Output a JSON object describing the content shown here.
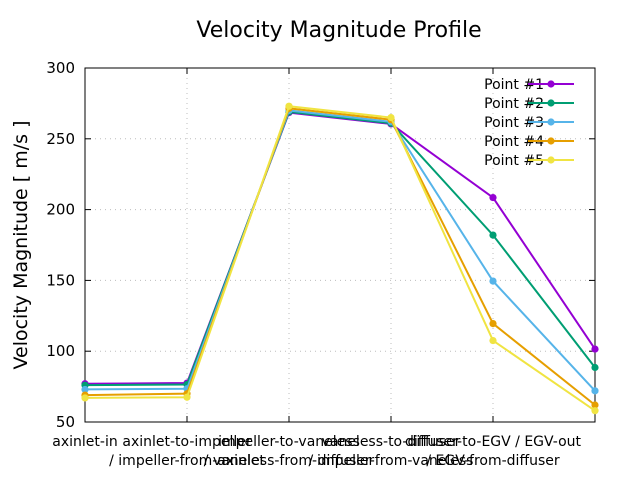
{
  "chart_data": {
    "type": "line",
    "title": "Velocity Magnitude Profile",
    "xlabel": "",
    "ylabel": "Velocity Magnitude [ m/s ]",
    "ylim": [
      50,
      300
    ],
    "yticks": [
      50,
      100,
      150,
      200,
      250,
      300
    ],
    "grid": true,
    "legend_position": "top-right",
    "categories": [
      [
        "axinlet-in",
        ""
      ],
      [
        "axinlet-to-impeller",
        "/ impeller-from-axinlet"
      ],
      [
        "impeller-to-vaneless",
        "/ vaneless-from-impeller"
      ],
      [
        "vaneless-to-diffuser",
        "/ diffuser-from-vaneless"
      ],
      [
        "diffuser-to-EGV / EGV-out",
        "/ EGV-from-diffuser"
      ],
      [
        "",
        ""
      ]
    ],
    "series": [
      {
        "name": "Point #1",
        "color": "#9400d3",
        "values": [
          77,
          77.5,
          268.5,
          260.5,
          208.5,
          101.5
        ]
      },
      {
        "name": "Point #2",
        "color": "#009e73",
        "values": [
          76,
          76.5,
          269,
          261,
          182,
          88.5
        ]
      },
      {
        "name": "Point #3",
        "color": "#56b4e9",
        "values": [
          73,
          73.5,
          270,
          262,
          149.5,
          72
        ]
      },
      {
        "name": "Point #4",
        "color": "#e69f00",
        "values": [
          69,
          70,
          271.5,
          263.5,
          119.5,
          62
        ]
      },
      {
        "name": "Point #5",
        "color": "#f0e442",
        "values": [
          67,
          67.5,
          273,
          265,
          107.5,
          58
        ]
      }
    ]
  }
}
